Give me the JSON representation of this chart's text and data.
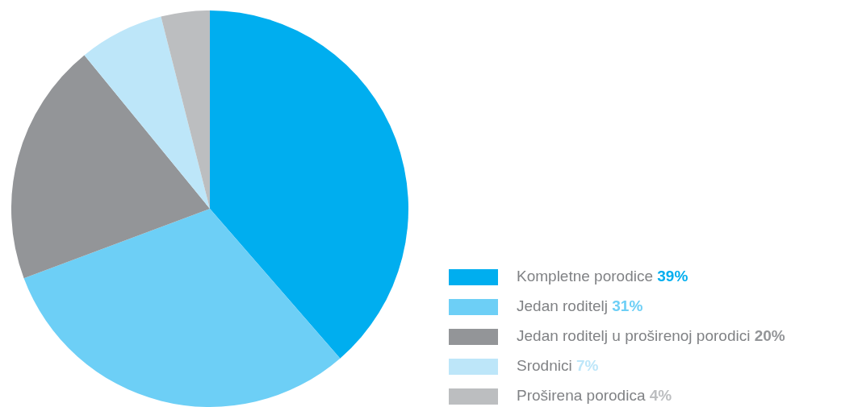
{
  "chart_data": {
    "type": "pie",
    "categories": [
      "Kompletne porodice",
      "Jedan roditelj",
      "Jedan roditelj u proširenoj porodici",
      "Srodnici",
      "Proširena porodica"
    ],
    "values": [
      39,
      31,
      20,
      7,
      4
    ],
    "colors": [
      "#00aeef",
      "#6dcff6",
      "#939598",
      "#bde6f9",
      "#bcbec0"
    ],
    "value_labels": [
      "39%",
      "31%",
      "20%",
      "7%",
      "4%"
    ],
    "legend": "bottom right"
  }
}
